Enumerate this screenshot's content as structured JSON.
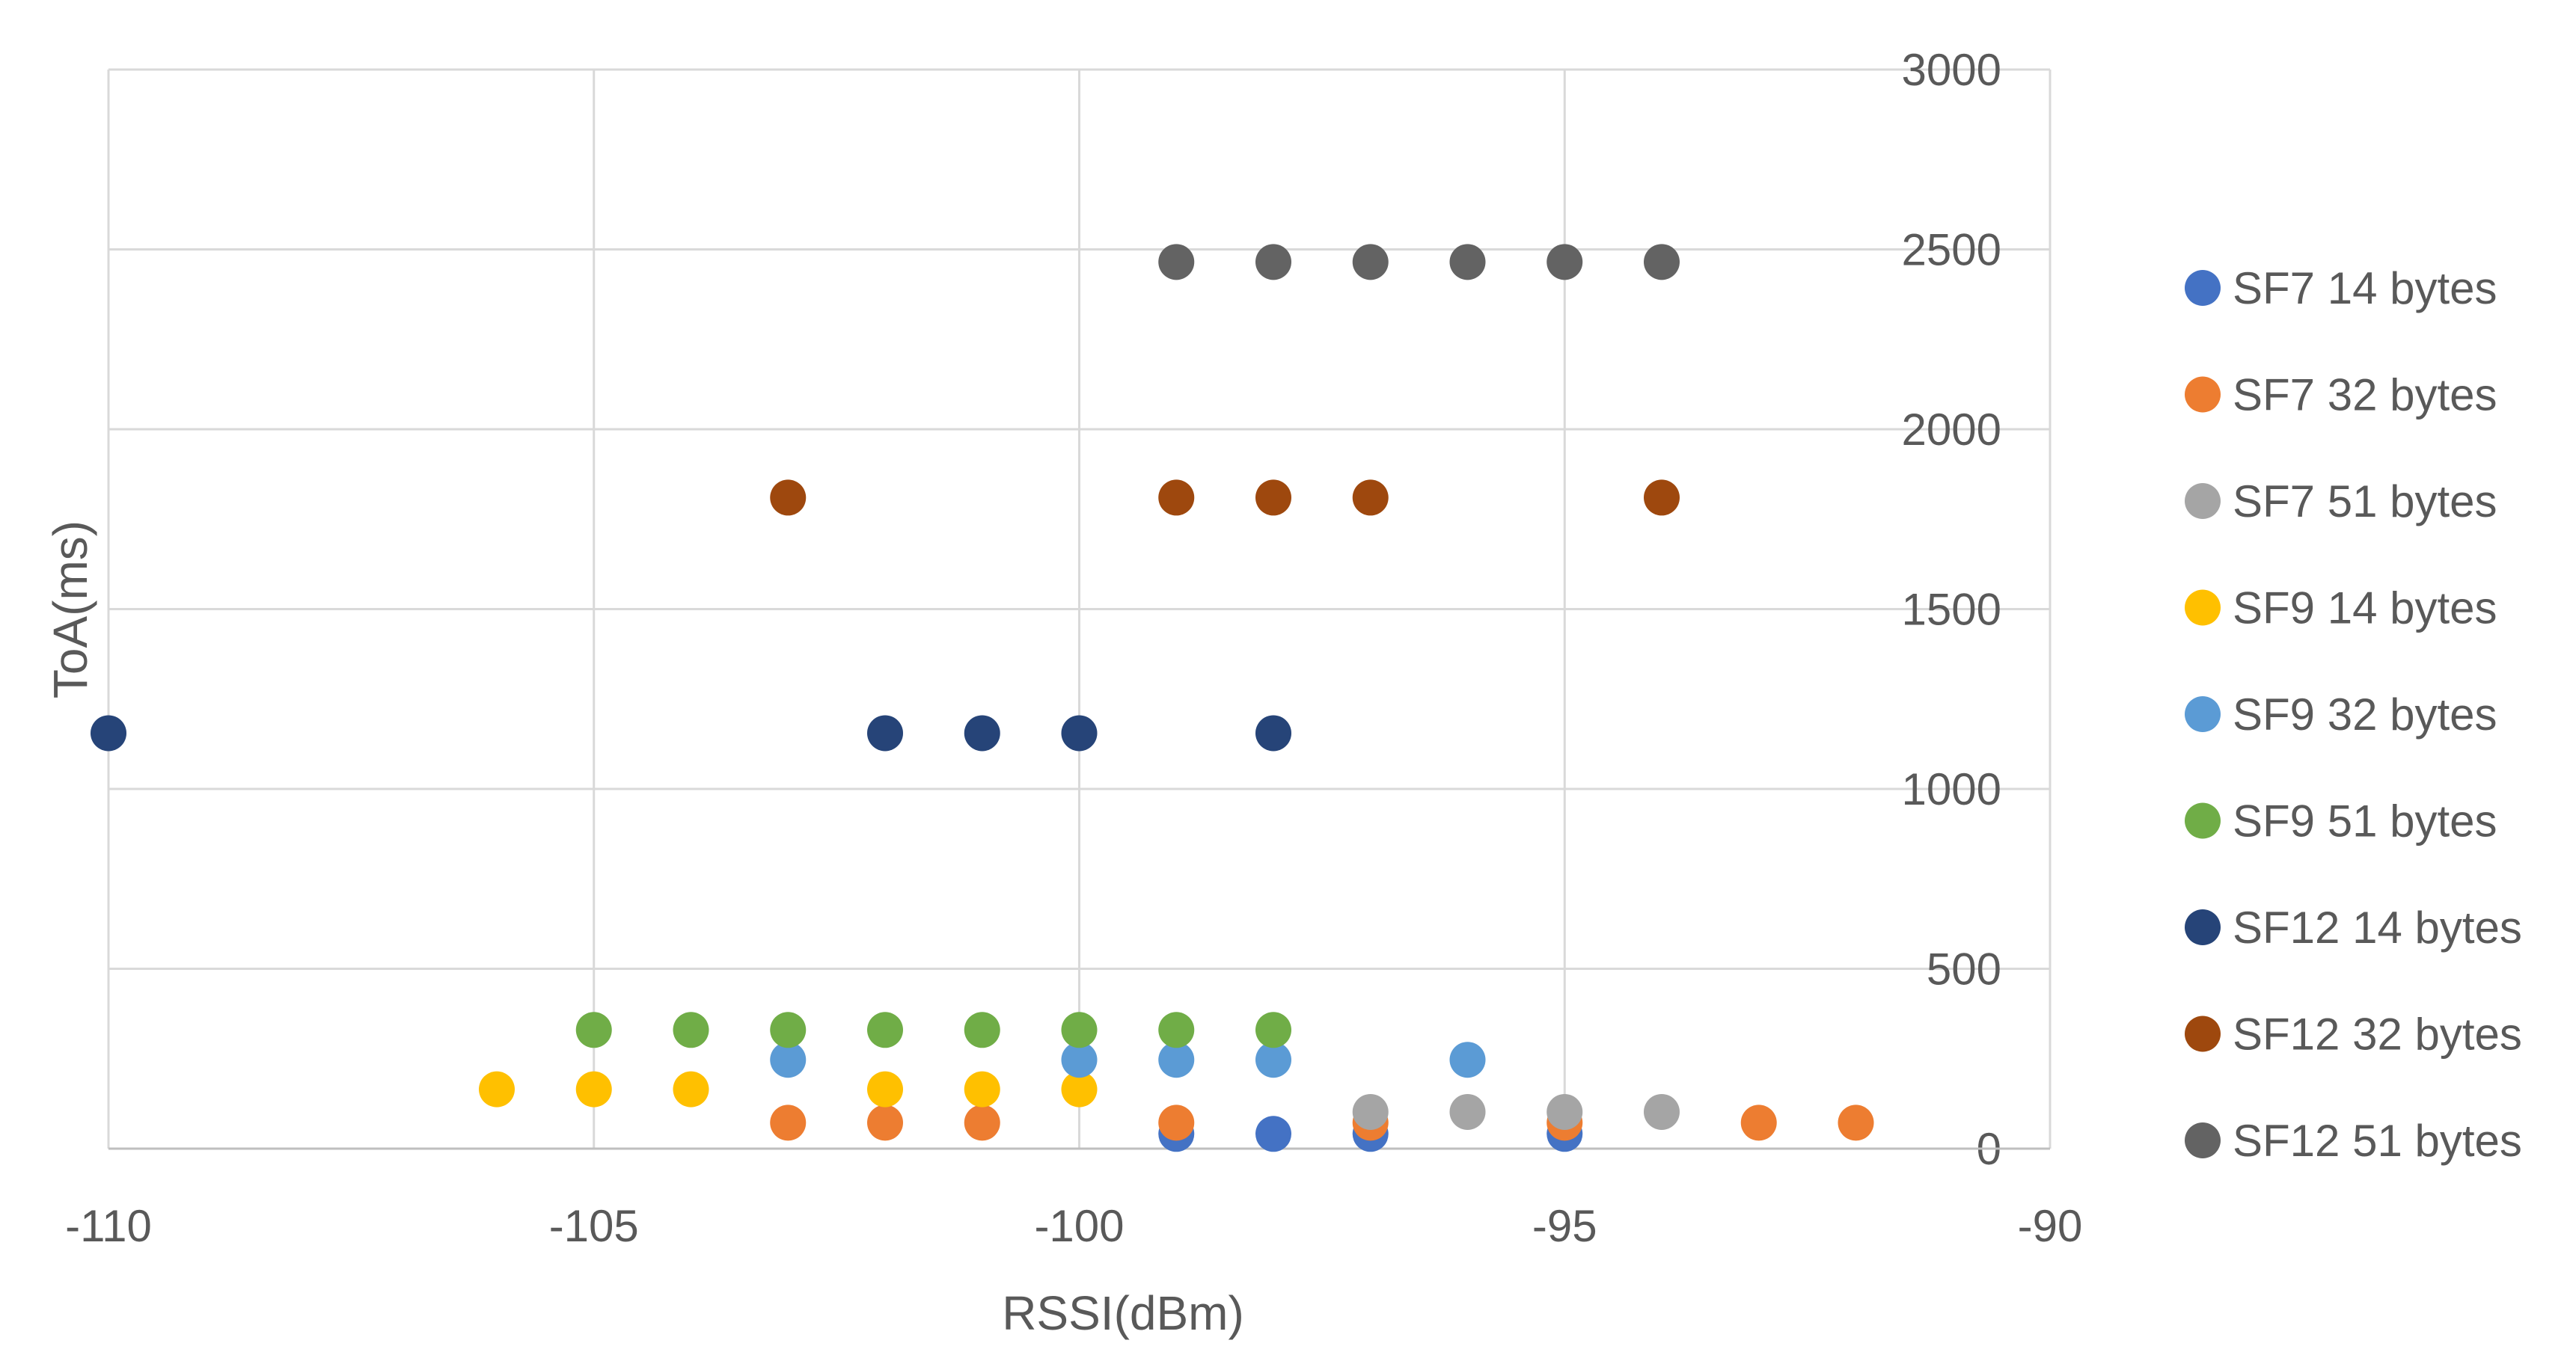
{
  "chart_data": {
    "type": "scatter",
    "title": "",
    "xlabel": "RSSI(dBm)",
    "ylabel": "ToA(ms)",
    "xlim": [
      -110,
      -90
    ],
    "ylim": [
      0,
      3000
    ],
    "x_ticks": [
      -110,
      -105,
      -100,
      -95,
      -90
    ],
    "y_ticks": [
      0,
      500,
      1000,
      1500,
      2000,
      2500,
      3000
    ],
    "x_tick_labels": [
      "-110",
      "-105",
      "-100",
      "-95",
      "-90"
    ],
    "y_tick_labels": [
      "0",
      "500",
      "1000",
      "1500",
      "2000",
      "2500",
      "3000"
    ],
    "y_axis_position": "right",
    "grid": true,
    "legend_position": "right",
    "series": [
      {
        "name": "SF7 14 bytes",
        "color": "#4472C4",
        "points": [
          [
            -99,
            41
          ],
          [
            -98,
            41
          ],
          [
            -97,
            41
          ],
          [
            -95,
            41
          ]
        ]
      },
      {
        "name": "SF7 32 bytes",
        "color": "#ED7D31",
        "points": [
          [
            -103,
            72
          ],
          [
            -102,
            72
          ],
          [
            -101,
            72
          ],
          [
            -99,
            72
          ],
          [
            -97,
            72
          ],
          [
            -95,
            72
          ],
          [
            -93,
            72
          ],
          [
            -92,
            72
          ]
        ]
      },
      {
        "name": "SF7 51 bytes",
        "color": "#A5A5A5",
        "points": [
          [
            -97,
            102
          ],
          [
            -96,
            102
          ],
          [
            -95,
            102
          ],
          [
            -94,
            102
          ]
        ]
      },
      {
        "name": "SF9 14 bytes",
        "color": "#FFC000",
        "points": [
          [
            -106,
            165
          ],
          [
            -105,
            165
          ],
          [
            -104,
            165
          ],
          [
            -102,
            165
          ],
          [
            -101,
            165
          ],
          [
            -100,
            165
          ]
        ]
      },
      {
        "name": "SF9 32 bytes",
        "color": "#5B9BD5",
        "points": [
          [
            -103,
            247
          ],
          [
            -100,
            247
          ],
          [
            -99,
            247
          ],
          [
            -98,
            247
          ],
          [
            -96,
            247
          ]
        ]
      },
      {
        "name": "SF9 51 bytes",
        "color": "#70AD47",
        "points": [
          [
            -105,
            330
          ],
          [
            -104,
            330
          ],
          [
            -103,
            330
          ],
          [
            -102,
            330
          ],
          [
            -101,
            330
          ],
          [
            -100,
            330
          ],
          [
            -99,
            330
          ],
          [
            -98,
            330
          ]
        ]
      },
      {
        "name": "SF12 14 bytes",
        "color": "#264478",
        "points": [
          [
            -110,
            1155
          ],
          [
            -102,
            1155
          ],
          [
            -101,
            1155
          ],
          [
            -100,
            1155
          ],
          [
            -98,
            1155
          ]
        ]
      },
      {
        "name": "SF12 32 bytes",
        "color": "#9E480E",
        "points": [
          [
            -103,
            1810
          ],
          [
            -99,
            1810
          ],
          [
            -98,
            1810
          ],
          [
            -97,
            1810
          ],
          [
            -94,
            1810
          ]
        ]
      },
      {
        "name": "SF12 51 bytes",
        "color": "#636363",
        "points": [
          [
            -99,
            2465
          ],
          [
            -98,
            2465
          ],
          [
            -97,
            2465
          ],
          [
            -96,
            2465
          ],
          [
            -95,
            2465
          ],
          [
            -94,
            2465
          ]
        ]
      }
    ]
  }
}
